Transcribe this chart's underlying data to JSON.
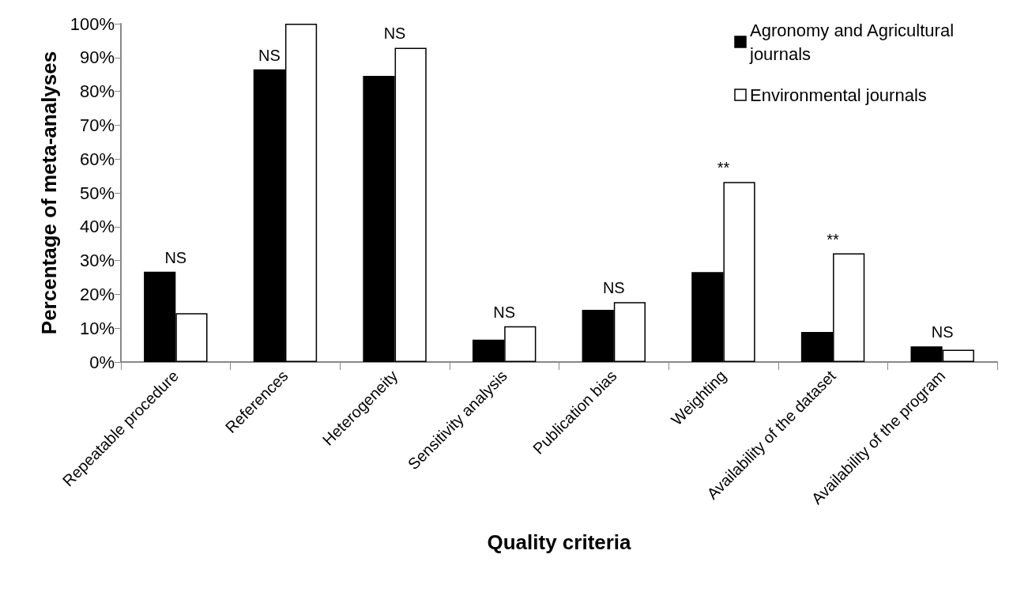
{
  "chart_data": {
    "type": "bar",
    "xlabel": "Quality criteria",
    "ylabel": "Percentage of meta-analyses",
    "categories": [
      "Repeatable procedure",
      "References",
      "Heterogeneity",
      "Sensitivity analysis",
      "Publication bias",
      "Weighting",
      "Availability of the dataset",
      "Availability of the program"
    ],
    "series": [
      {
        "name": "Agronomy and Agricultural journals",
        "color": "#000000",
        "values": [
          26.7,
          86.5,
          84.6,
          6.6,
          15.4,
          26.6,
          8.9,
          4.6
        ]
      },
      {
        "name": "Environmental journals",
        "color": "#ffffff",
        "values": [
          14.4,
          100,
          92.9,
          10.6,
          17.7,
          53.2,
          32.1,
          3.6
        ]
      }
    ],
    "ylim": [
      0,
      100
    ],
    "yticks": [
      {
        "value": 0,
        "label": "0%"
      },
      {
        "value": 10,
        "label": "10%"
      },
      {
        "value": 20,
        "label": "20%"
      },
      {
        "value": 30,
        "label": "30%"
      },
      {
        "value": 40,
        "label": "40%"
      },
      {
        "value": 50,
        "label": "50%"
      },
      {
        "value": 60,
        "label": "60%"
      },
      {
        "value": 70,
        "label": "70%"
      },
      {
        "value": 80,
        "label": "80%"
      },
      {
        "value": 90,
        "label": "90%"
      },
      {
        "value": 100,
        "label": "100%"
      }
    ],
    "annotations": [
      "NS",
      "NS",
      "NS",
      "NS",
      "NS",
      "**",
      "**",
      "NS"
    ],
    "grid": false,
    "legend": "top right"
  }
}
